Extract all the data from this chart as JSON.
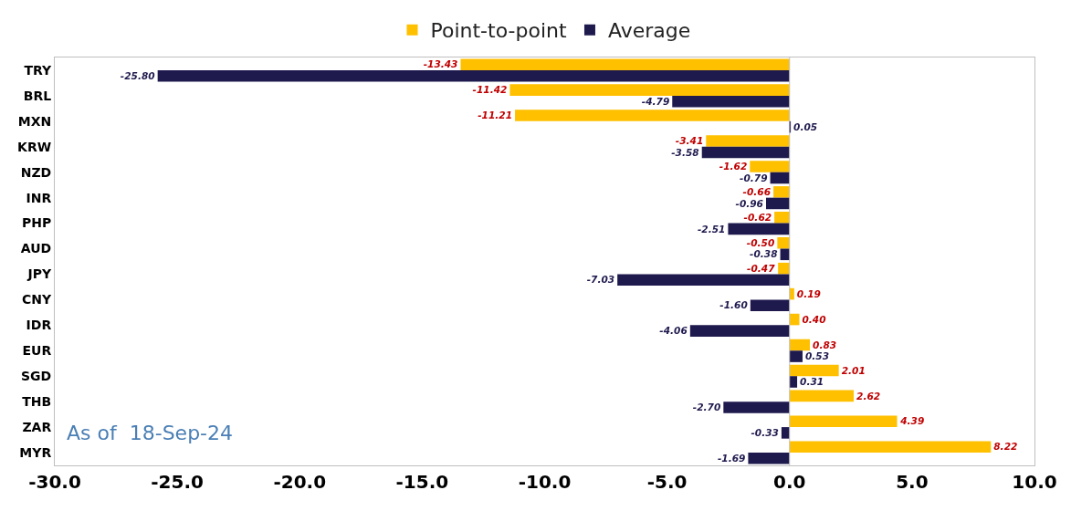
{
  "chart_data": {
    "type": "bar",
    "orientation": "horizontal",
    "categories": [
      "TRY",
      "BRL",
      "MXN",
      "KRW",
      "NZD",
      "INR",
      "PHP",
      "AUD",
      "JPY",
      "CNY",
      "IDR",
      "EUR",
      "SGD",
      "THB",
      "ZAR",
      "MYR"
    ],
    "series": [
      {
        "name": "Point-to-point",
        "color": "#ffc000",
        "values": [
          -13.43,
          -11.42,
          -11.21,
          -3.41,
          -1.62,
          -0.66,
          -0.62,
          -0.5,
          -0.47,
          0.19,
          0.4,
          0.83,
          2.01,
          2.62,
          4.39,
          8.22
        ],
        "value_labels": [
          "-13.43",
          "-11.42",
          "-11.21",
          "-3.41",
          "-1.62",
          "-0.66",
          "-0.62",
          "-0.50",
          "-0.47",
          "0.19",
          "0.40",
          "0.83",
          "2.01",
          "2.62",
          "4.39",
          "8.22"
        ]
      },
      {
        "name": "Average",
        "color": "#1f1a4e",
        "values": [
          -25.8,
          -4.79,
          0.05,
          -3.58,
          -0.79,
          -0.96,
          -2.51,
          -0.38,
          -7.03,
          -1.6,
          -4.06,
          0.53,
          0.31,
          -2.7,
          -0.33,
          -1.69
        ],
        "value_labels": [
          "-25.80",
          "-4.79",
          "0.05",
          "-3.58",
          "-0.79",
          "-0.96",
          "-2.51",
          "-0.38",
          "-7.03",
          "-1.60",
          "-4.06",
          "0.53",
          "0.31",
          "-2.70",
          "-0.33",
          "-1.69"
        ]
      }
    ],
    "xlim": [
      -30,
      10
    ],
    "xticks": [
      {
        "value": -30,
        "label": "-30.0"
      },
      {
        "value": -25,
        "label": "-25.0"
      },
      {
        "value": -20,
        "label": "-20.0"
      },
      {
        "value": -15,
        "label": "-15.0"
      },
      {
        "value": -10,
        "label": "-10.0"
      },
      {
        "value": -5,
        "label": "-5.0"
      },
      {
        "value": 0,
        "label": "0.0"
      },
      {
        "value": 5,
        "label": "5.0"
      },
      {
        "value": 10,
        "label": "10.0"
      }
    ],
    "ref_lines": [
      {
        "axis": "x",
        "value": 0,
        "color": "#bfbfbf"
      }
    ],
    "legend": "top",
    "annotations": [
      "As of  18-Sep-24"
    ]
  }
}
